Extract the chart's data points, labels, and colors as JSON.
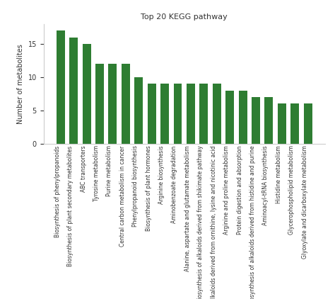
{
  "title": "Top 20 KEGG pathway",
  "ylabel": "Number of metabolites",
  "categories": [
    "Biosynthesis of phenylpropanoids",
    "Biosynthesis of plant secondary metabolites",
    "ABC transporters",
    "Tyrosine metabolism",
    "Purine metabolism",
    "Central carbon metabolism in cancer",
    "Phenylpropanoid biosynthesis",
    "Biosynthesis of plant hormones",
    "Arginine biosynthesis",
    "Aminobenzoate degradation",
    "Alanine, aspartate and glutamate metabolism",
    "Biosynthesis of alkaloids derived from shikimate pathway",
    "Biosynthesis of alkaloids derived from ornithine, lysine and nicotinic acid",
    "Arginine and proline metabolism",
    "Protein digestion and absorption",
    "Biosynthesis of alkaloids derived from histidine and purine",
    "Aminoacyl-tRNA biosynthesis",
    "Histidine metabolism",
    "Glycerophospholipid metabolism",
    "Glyoxylate and dicarboxylate metabolism"
  ],
  "values": [
    17,
    16,
    15,
    12,
    12,
    12,
    10,
    9,
    9,
    9,
    9,
    9,
    9,
    8,
    8,
    7,
    7,
    6,
    6,
    6
  ],
  "bar_color": "#2e7d32",
  "ylim": [
    0,
    18
  ],
  "yticks": [
    0,
    5,
    10,
    15
  ],
  "title_fontsize": 8,
  "label_fontsize": 5.5,
  "ylabel_fontsize": 7,
  "tick_fontsize": 7,
  "background_color": "#ffffff"
}
